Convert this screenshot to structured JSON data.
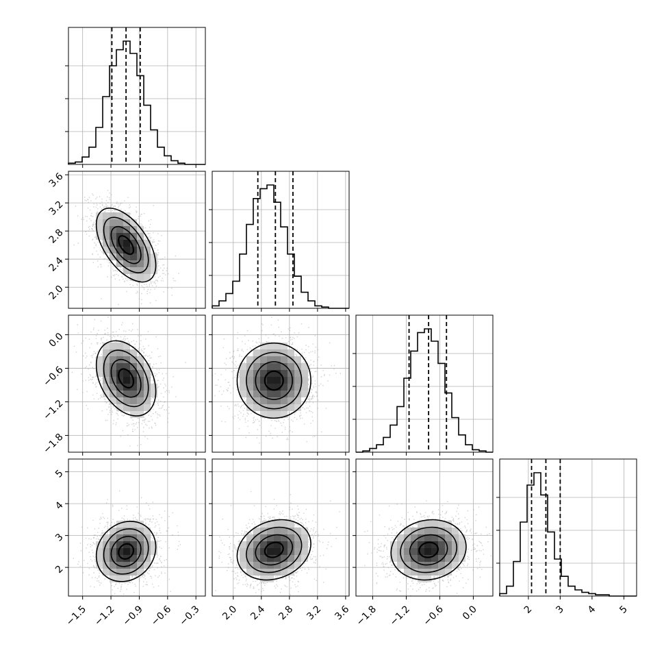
{
  "chart_data": {
    "type": "corner",
    "description_of_panels": "lower-triangle 2D density plots (scatter + 2D histogram + contours), diagonal 1D histograms with dashed quantile lines",
    "n_params": 4,
    "params": [
      {
        "index": 0,
        "hist_range": [
          -1.65,
          -0.2
        ],
        "mode": -1.03,
        "quantiles": [
          -1.19,
          -1.04,
          -0.89
        ],
        "spread": 0.15,
        "ticks": [
          -1.5,
          -1.2,
          -0.9,
          -0.6,
          -0.3
        ],
        "tick_labels": [
          "−1.5",
          "−1.2",
          "−0.9",
          "−0.6",
          "−0.3"
        ]
      },
      {
        "index": 1,
        "hist_range": [
          1.7,
          3.65
        ],
        "mode": 2.6,
        "quantiles": [
          2.35,
          2.6,
          2.85
        ],
        "spread": 0.25,
        "ticks": [
          2.0,
          2.4,
          2.8,
          3.2,
          3.6
        ],
        "tick_labels": [
          "2.0",
          "2.4",
          "2.8",
          "3.2",
          "3.6"
        ]
      },
      {
        "index": 2,
        "hist_range": [
          -2.1,
          0.35
        ],
        "mode": -0.8,
        "quantiles": [
          -1.15,
          -0.8,
          -0.48
        ],
        "spread": 0.32,
        "ticks": [
          -1.8,
          -1.2,
          -0.6,
          0.0
        ],
        "tick_labels": [
          "−1.8",
          "−1.2",
          "−0.6",
          "0.0"
        ]
      },
      {
        "index": 3,
        "hist_range": [
          1.1,
          5.4
        ],
        "mode": 2.5,
        "quantiles": [
          2.1,
          2.55,
          3.0
        ],
        "spread": 0.45,
        "ticks": [
          2,
          3,
          4,
          5
        ],
        "tick_labels": [
          "2",
          "3",
          "4",
          "5"
        ]
      }
    ],
    "histograms": [
      {
        "param": 0,
        "bins": 20,
        "counts": [
          1,
          2,
          6,
          14,
          30,
          55,
          80,
          93,
          100,
          90,
          72,
          48,
          28,
          14,
          7,
          3,
          1,
          0,
          0,
          0
        ]
      },
      {
        "param": 1,
        "bins": 20,
        "counts": [
          2,
          6,
          12,
          22,
          44,
          68,
          89,
          97,
          100,
          86,
          66,
          44,
          26,
          13,
          6,
          2,
          1,
          0,
          0,
          0
        ]
      },
      {
        "param": 2,
        "bins": 20,
        "counts": [
          0,
          1,
          3,
          6,
          12,
          22,
          37,
          60,
          82,
          97,
          100,
          90,
          72,
          48,
          28,
          14,
          6,
          2,
          1,
          0
        ]
      },
      {
        "param": 3,
        "bins": 20,
        "counts": [
          2,
          8,
          28,
          60,
          90,
          100,
          82,
          52,
          30,
          16,
          8,
          5,
          3,
          2,
          1,
          1,
          0,
          0,
          0,
          0
        ]
      }
    ],
    "pairs": [
      {
        "x": 0,
        "y": 1,
        "center": [
          -1.04,
          2.6
        ],
        "correlation": -0.55
      },
      {
        "x": 0,
        "y": 2,
        "center": [
          -1.04,
          -0.78
        ],
        "correlation": -0.35
      },
      {
        "x": 1,
        "y": 2,
        "center": [
          2.58,
          -0.82
        ],
        "correlation": 0.0
      },
      {
        "x": 0,
        "y": 3,
        "center": [
          -1.04,
          2.5
        ],
        "correlation": 0.15
      },
      {
        "x": 1,
        "y": 3,
        "center": [
          2.58,
          2.55
        ],
        "correlation": 0.2
      },
      {
        "x": 2,
        "y": 3,
        "center": [
          -0.8,
          2.55
        ],
        "correlation": 0.1
      }
    ],
    "contour_levels_sigma": [
      0.5,
      1.0,
      1.5,
      2.0
    ],
    "grid": true,
    "colors": {
      "axis": "#000000",
      "grid": "#b0b0b0",
      "scatter": "#9a9a9a",
      "density_low": "#f2f2f2",
      "density_high": "#1a1a1a"
    }
  }
}
